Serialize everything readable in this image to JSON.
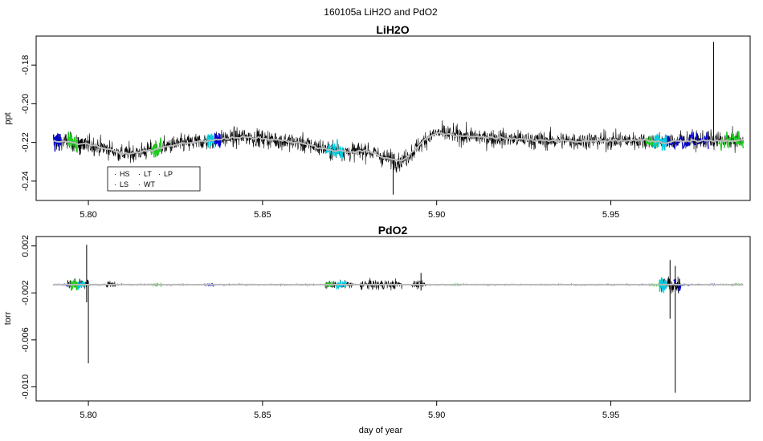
{
  "figure": {
    "suptitle": "160105a   LiH2O and PdO2",
    "xlabel": "day of year"
  },
  "colors": {
    "HS": "#000000",
    "LS": "#22cc22",
    "LT": "#00ccdd",
    "WT": "#000000",
    "LP": "#0000cc",
    "trace": "#000000",
    "smooth": "#bbbbbb"
  },
  "chart_data": [
    {
      "type": "line",
      "title": "LiH2O",
      "xlabel": "",
      "ylabel": "ppt",
      "xlim": [
        5.785,
        5.99
      ],
      "ylim": [
        -0.25,
        -0.165
      ],
      "xticks": [
        5.8,
        5.85,
        5.9,
        5.95
      ],
      "xtick_labels": [
        "5.80",
        "5.85",
        "5.90",
        "5.95"
      ],
      "yticks": [
        -0.24,
        -0.22,
        -0.2,
        -0.18
      ],
      "ytick_labels": [
        "-0.24",
        "-0.22",
        "-0.20",
        "-0.18"
      ],
      "legend": {
        "placement": "bottom-left",
        "entries": [
          {
            "key": "HS",
            "label": "HS"
          },
          {
            "key": "LT",
            "label": "LT"
          },
          {
            "key": "LP",
            "label": "LP"
          },
          {
            "key": "LS",
            "label": "LS"
          },
          {
            "key": "WT",
            "label": "WT"
          }
        ]
      },
      "series": [
        {
          "key": "trace",
          "baseline": {
            "x": [
              5.79,
              5.795,
              5.8,
              5.805,
              5.81,
              5.815,
              5.82,
              5.825,
              5.83,
              5.835,
              5.84,
              5.845,
              5.85,
              5.855,
              5.86,
              5.865,
              5.87,
              5.875,
              5.88,
              5.885,
              5.89,
              5.893,
              5.897,
              5.9,
              5.905,
              5.91,
              5.92,
              5.93,
              5.94,
              5.95,
              5.96,
              5.965,
              5.97,
              5.975,
              5.98,
              5.985,
              5.988
            ],
            "y": [
              -0.219,
              -0.22,
              -0.221,
              -0.223,
              -0.226,
              -0.225,
              -0.223,
              -0.221,
              -0.22,
              -0.219,
              -0.218,
              -0.217,
              -0.218,
              -0.219,
              -0.22,
              -0.222,
              -0.224,
              -0.225,
              -0.224,
              -0.228,
              -0.23,
              -0.225,
              -0.218,
              -0.215,
              -0.216,
              -0.217,
              -0.218,
              -0.219,
              -0.219,
              -0.219,
              -0.219,
              -0.22,
              -0.219,
              -0.219,
              -0.219,
              -0.219,
              -0.219
            ]
          },
          "noise_amplitude": 0.009,
          "spikes": [
            {
              "x": 5.9795,
              "ymin": -0.222,
              "ymax": -0.168
            },
            {
              "x": 5.8875,
              "ymin": -0.247,
              "ymax": -0.226
            }
          ]
        },
        {
          "key": "LP",
          "name": "LP",
          "segments": [
            [
              5.79,
              5.792
            ],
            [
              5.836,
              5.838
            ],
            [
              5.965,
              5.978
            ]
          ]
        },
        {
          "key": "LS",
          "name": "LS",
          "segments": [
            [
              5.794,
              5.797
            ],
            [
              5.818,
              5.821
            ],
            [
              5.96,
              5.964
            ],
            [
              5.981,
              5.988
            ]
          ]
        },
        {
          "key": "LT",
          "name": "LT",
          "segments": [
            [
              5.834,
              5.836
            ],
            [
              5.868,
              5.873
            ],
            [
              5.962,
              5.966
            ]
          ]
        },
        {
          "key": "HS",
          "name": "HS",
          "segments": [
            [
              5.797,
              5.799
            ]
          ]
        }
      ]
    },
    {
      "type": "line",
      "title": "PdO2",
      "xlabel": "day of year",
      "ylabel": "torr",
      "xlim": [
        5.785,
        5.99
      ],
      "ylim": [
        -0.0112,
        0.0028
      ],
      "xticks": [
        5.8,
        5.85,
        5.9,
        5.95
      ],
      "xtick_labels": [
        "5.80",
        "5.85",
        "5.90",
        "5.95"
      ],
      "yticks": [
        -0.01,
        -0.006,
        -0.002,
        0.002
      ],
      "ytick_labels": [
        "-0.010",
        "-0.006",
        "-0.002",
        "0.002"
      ],
      "series": [
        {
          "key": "trace",
          "baseline": {
            "x": [
              5.79,
              5.8,
              5.85,
              5.9,
              5.95,
              5.988
            ],
            "y": [
              -0.0013,
              -0.0013,
              -0.0013,
              -0.0013,
              -0.0013,
              -0.0013
            ]
          },
          "noise_amplitude": 0.00012,
          "bursts": [
            {
              "x": [
                5.794,
                5.8
              ],
              "amp": 0.0008
            },
            {
              "x": [
                5.805,
                5.808
              ],
              "amp": 0.0005
            },
            {
              "x": [
                5.868,
                5.876
              ],
              "amp": 0.0005
            },
            {
              "x": [
                5.878,
                5.89
              ],
              "amp": 0.0007
            },
            {
              "x": [
                5.893,
                5.897
              ],
              "amp": 0.0005
            },
            {
              "x": [
                5.964,
                5.97
              ],
              "amp": 0.0012
            }
          ],
          "spikes": [
            {
              "x": 5.7995,
              "ymin": -0.0028,
              "ymax": 0.0021
            },
            {
              "x": 5.8,
              "ymin": -0.008,
              "ymax": -0.001
            },
            {
              "x": 5.9685,
              "ymin": -0.0105,
              "ymax": 0.0003
            },
            {
              "x": 5.967,
              "ymin": -0.0042,
              "ymax": 0.0008
            },
            {
              "x": 5.8955,
              "ymin": -0.0018,
              "ymax": -0.0003
            }
          ]
        },
        {
          "key": "LP",
          "name": "LP",
          "segments": [
            [
              5.79,
              5.794
            ],
            [
              5.833,
              5.836
            ],
            [
              5.968,
              5.98
            ]
          ]
        },
        {
          "key": "LS",
          "name": "LS",
          "segments": [
            [
              5.795,
              5.797
            ],
            [
              5.818,
              5.821
            ],
            [
              5.868,
              5.87
            ],
            [
              5.904,
              5.907
            ],
            [
              5.961,
              5.964
            ],
            [
              5.982,
              5.988
            ]
          ]
        },
        {
          "key": "LT",
          "name": "LT",
          "segments": [
            [
              5.797,
              5.799
            ],
            [
              5.871,
              5.874
            ],
            [
              5.964,
              5.966
            ]
          ]
        }
      ]
    }
  ]
}
